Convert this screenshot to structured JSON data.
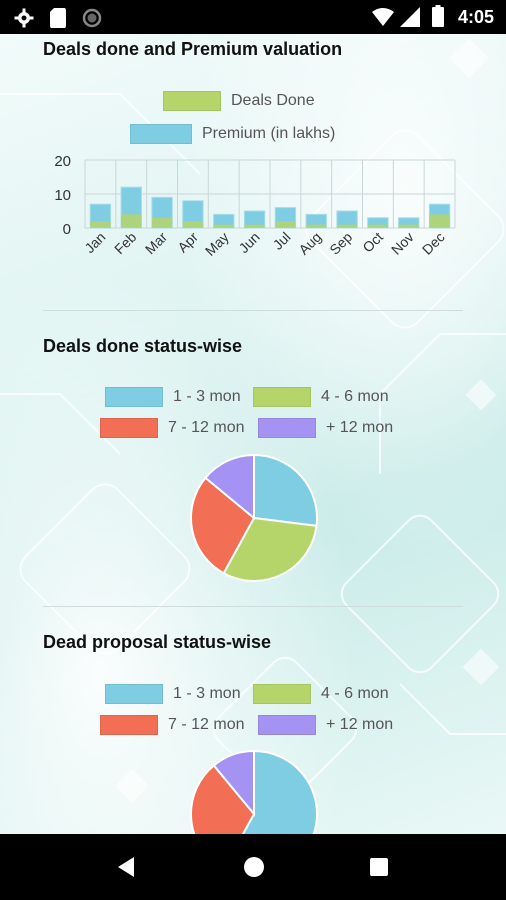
{
  "status_bar": {
    "time": "4:05"
  },
  "colors": {
    "blue": "#7ecde3",
    "green": "#b5d56a",
    "red": "#f26f55",
    "purple": "#a493f2"
  },
  "chart_data": [
    {
      "type": "bar",
      "title": "Deals done and Premium valuation",
      "categories": [
        "Jan",
        "Feb",
        "Mar",
        "Apr",
        "May",
        "Jun",
        "Jul",
        "Aug",
        "Sep",
        "Oct",
        "Nov",
        "Dec"
      ],
      "series": [
        {
          "name": "Deals Done",
          "color": "#b5d56a",
          "values": [
            2,
            4,
            3,
            2,
            1,
            1,
            2,
            1,
            1,
            1,
            1,
            4
          ]
        },
        {
          "name": "Premium (in lakhs)",
          "color": "#7ecde3",
          "values": [
            7,
            12,
            9,
            8,
            4,
            5,
            6,
            4,
            5,
            3,
            3,
            7
          ]
        }
      ],
      "ylim": [
        0,
        20
      ],
      "yticks": [
        "0",
        "10",
        "20"
      ],
      "grid": true,
      "legend": "top"
    },
    {
      "type": "pie",
      "title": "Deals done status-wise",
      "labels": [
        "1 - 3 mon",
        "4 - 6 mon",
        "7 - 12 mon",
        "+ 12 mon"
      ],
      "colors": [
        "#7ecde3",
        "#b5d56a",
        "#f26f55",
        "#a493f2"
      ],
      "values": [
        27,
        31,
        28,
        14
      ],
      "legend": "top"
    },
    {
      "type": "pie",
      "title": "Dead proposal status-wise",
      "labels": [
        "1 - 3 mon",
        "4 - 6 mon",
        "7 - 12 mon",
        "+ 12 mon"
      ],
      "colors": [
        "#7ecde3",
        "#b5d56a",
        "#f26f55",
        "#a493f2"
      ],
      "values": [
        58,
        0,
        31,
        11
      ],
      "legend": "top"
    }
  ]
}
